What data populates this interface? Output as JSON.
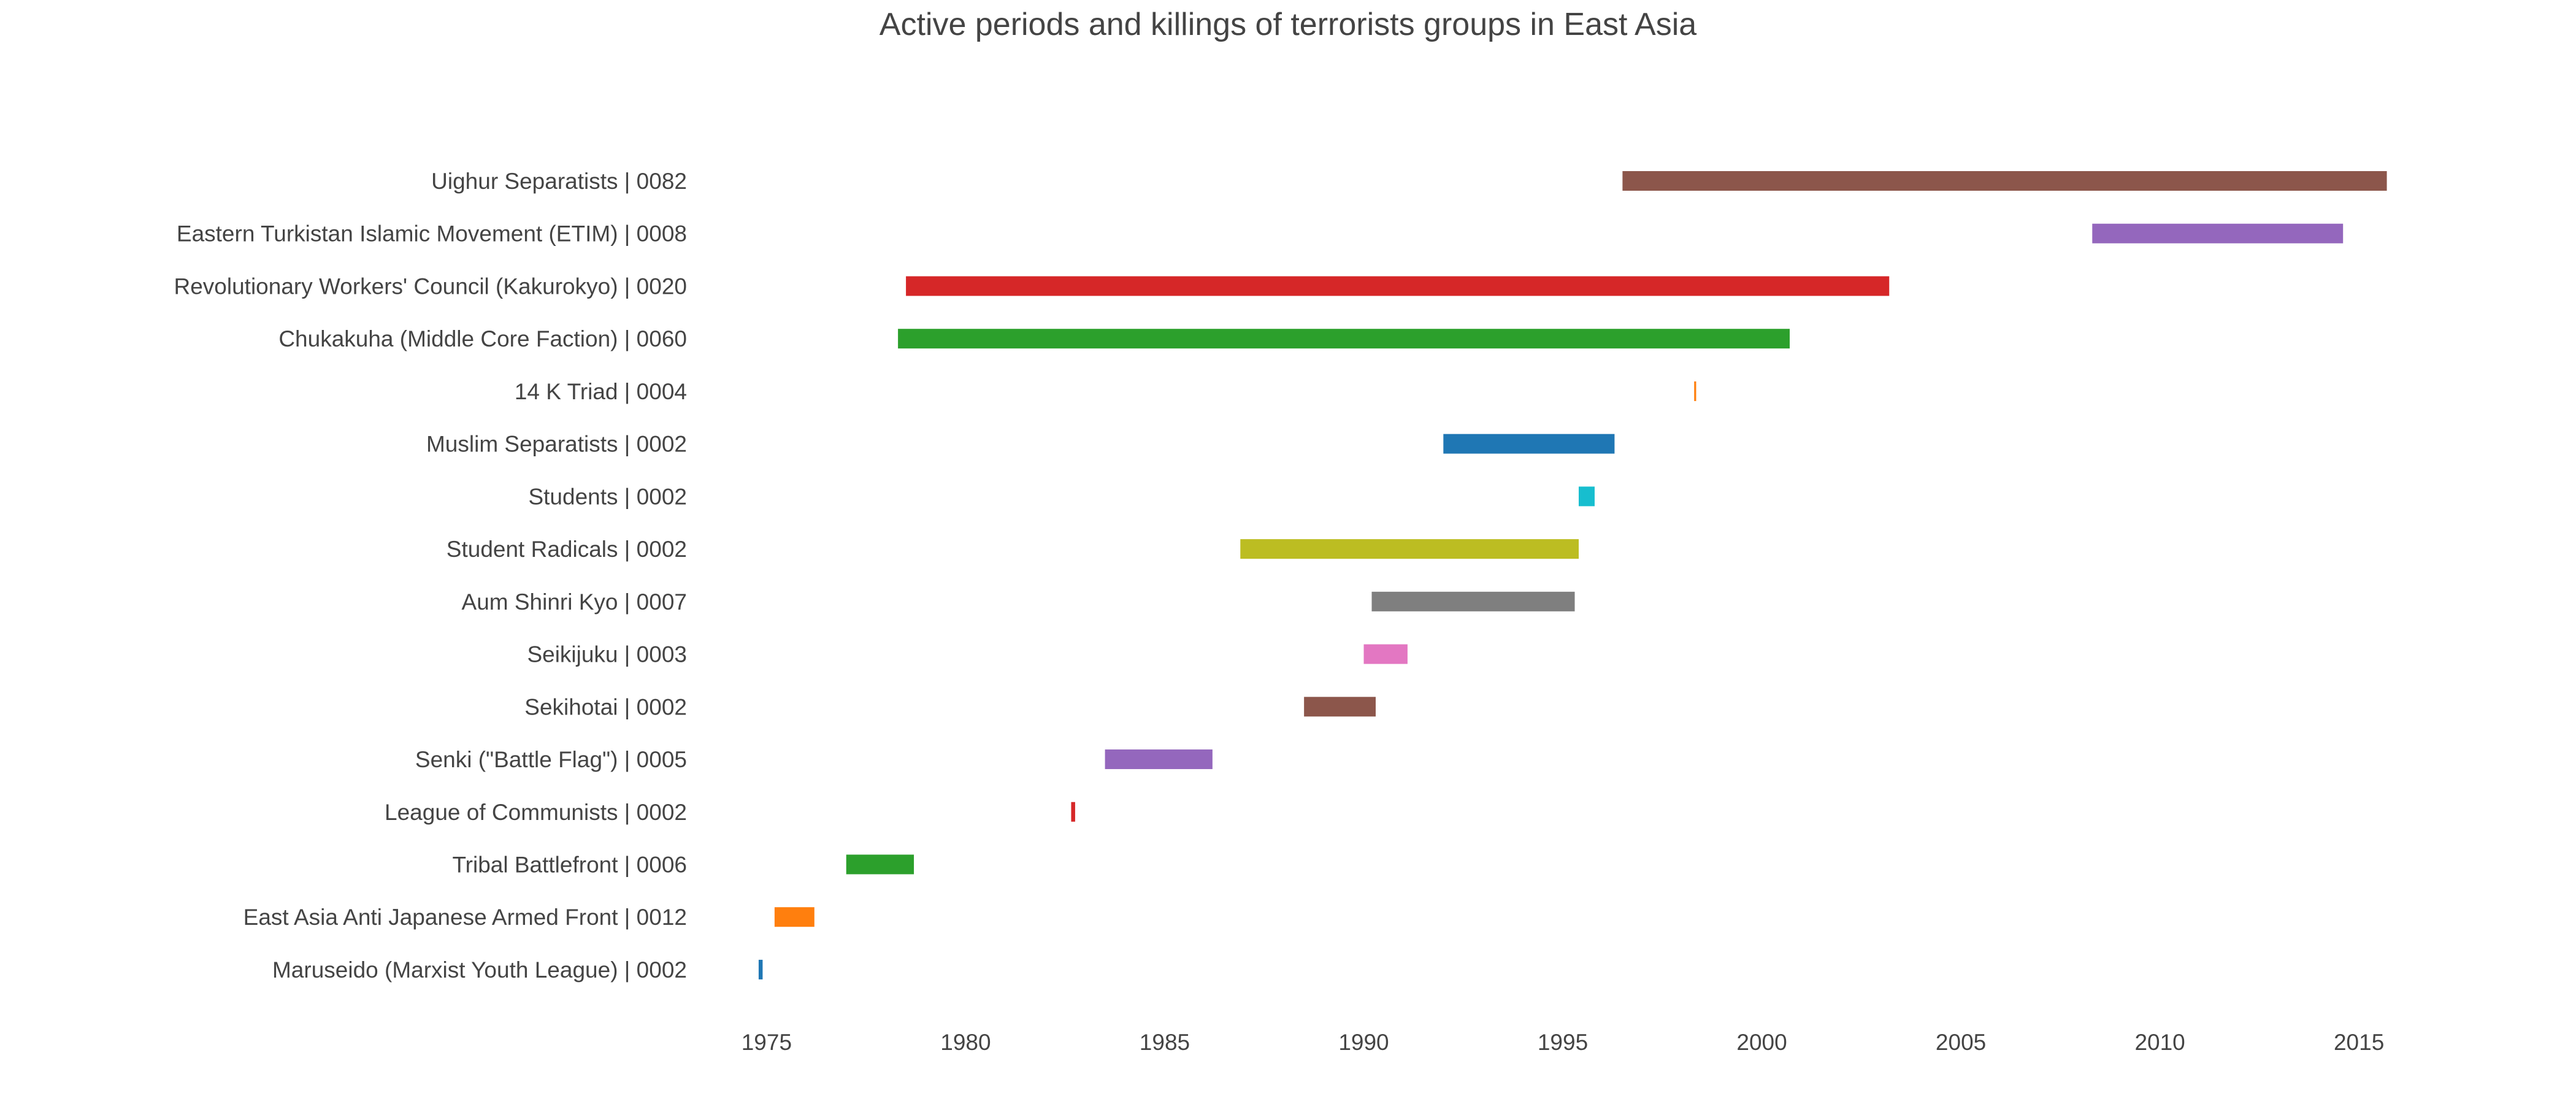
{
  "chart_data": {
    "type": "bar",
    "orientation": "horizontal-timeline",
    "title": "Active periods and killings of terrorists groups in East Asia",
    "xlabel": "",
    "ylabel": "",
    "xlim": [
      1974.0,
      2016.6
    ],
    "x_ticks": [
      1975,
      1980,
      1985,
      1990,
      1995,
      2000,
      2005,
      2010,
      2015
    ],
    "grid": false,
    "legend": "none",
    "categories": [
      "Maruseido (Marxist Youth League) | 0002",
      "East Asia Anti Japanese Armed Front | 0012",
      "Tribal Battlefront | 0006",
      "League of Communists | 0002",
      "Senki (\"Battle Flag\") | 0005",
      "Sekihotai | 0002",
      "Seikijuku | 0003",
      "Aum Shinri Kyo | 0007",
      "Student Radicals | 0002",
      "Students | 0002",
      "Muslim Separatists | 0002",
      "14 K Triad | 0004",
      "Chukakuha (Middle Core Faction) | 0060",
      "Revolutionary Workers' Council (Kakurokyo) | 0020",
      "Eastern Turkistan Islamic Movement (ETIM) | 0008",
      "Uighur Separatists | 0082"
    ],
    "bars": [
      {
        "start": 1974.8,
        "end": 1974.9,
        "color": "#1f77b4"
      },
      {
        "start": 1975.2,
        "end": 1976.2,
        "color": "#ff7f0e"
      },
      {
        "start": 1977.0,
        "end": 1978.7,
        "color": "#2ca02c"
      },
      {
        "start": 1982.65,
        "end": 1982.75,
        "color": "#d62728"
      },
      {
        "start": 1983.5,
        "end": 1986.2,
        "color": "#9467bd"
      },
      {
        "start": 1988.5,
        "end": 1990.3,
        "color": "#8c564b"
      },
      {
        "start": 1990.0,
        "end": 1991.1,
        "color": "#e377c2"
      },
      {
        "start": 1990.2,
        "end": 1995.3,
        "color": "#7f7f7f"
      },
      {
        "start": 1986.9,
        "end": 1995.4,
        "color": "#bcbd22"
      },
      {
        "start": 1995.4,
        "end": 1995.8,
        "color": "#17becf"
      },
      {
        "start": 1992.0,
        "end": 1996.3,
        "color": "#1f77b4"
      },
      {
        "start": 1998.3,
        "end": 1998.35,
        "color": "#ff7f0e"
      },
      {
        "start": 1978.3,
        "end": 2000.7,
        "color": "#2ca02c"
      },
      {
        "start": 1978.5,
        "end": 2003.2,
        "color": "#d62728"
      },
      {
        "start": 2008.3,
        "end": 2014.6,
        "color": "#9467bd"
      },
      {
        "start": 1996.5,
        "end": 2015.7,
        "color": "#8c564b"
      }
    ]
  }
}
